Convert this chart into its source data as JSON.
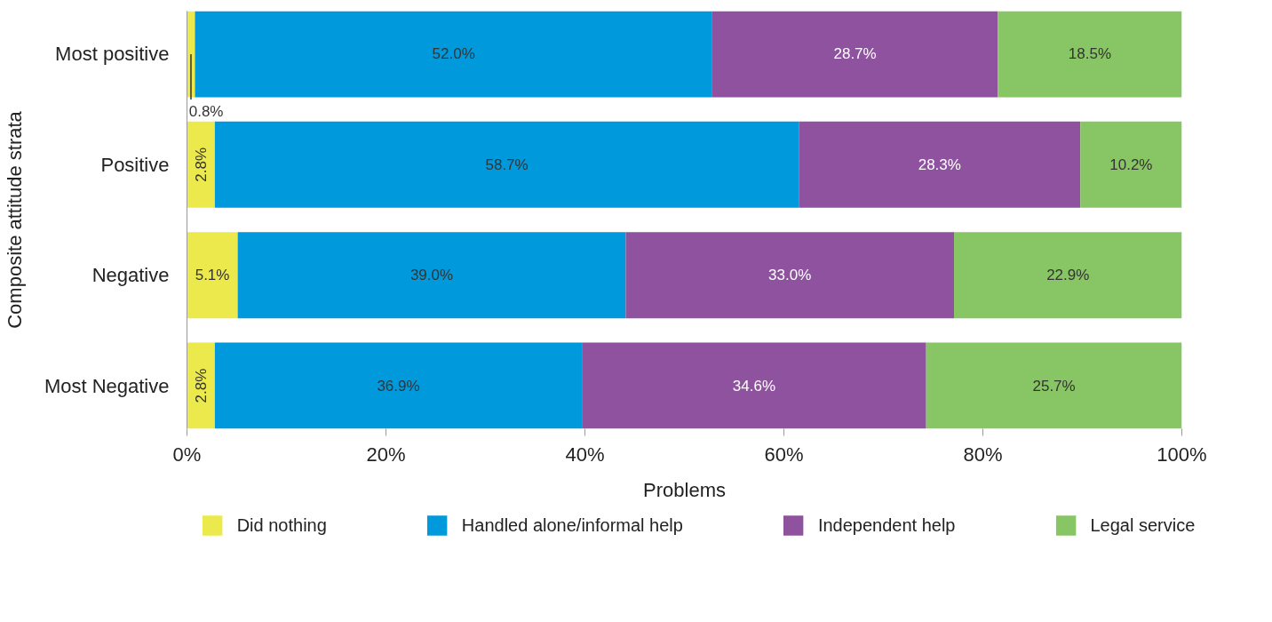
{
  "chart_data": {
    "type": "bar",
    "orientation": "horizontal",
    "stacked": true,
    "xlabel": "Problems",
    "ylabel": "Composite attitude strata",
    "categories": [
      "Most positive",
      "Positive",
      "Negative",
      "Most Negative"
    ],
    "series": [
      {
        "name": "Did nothing",
        "color": "#ece94c",
        "values": [
          0.8,
          2.8,
          5.1,
          2.8
        ]
      },
      {
        "name": "Handled alone/informal help",
        "color": "#0099dc",
        "values": [
          52.0,
          58.7,
          39.0,
          36.9
        ]
      },
      {
        "name": "Independent help",
        "color": "#8e529f",
        "values": [
          28.7,
          28.3,
          33.0,
          34.6
        ]
      },
      {
        "name": "Legal service",
        "color": "#88c665",
        "values": [
          18.5,
          10.2,
          22.9,
          25.7
        ]
      }
    ],
    "xlim": [
      0,
      100
    ],
    "xticks": [
      {
        "value": 0,
        "label": "0%"
      },
      {
        "value": 20,
        "label": "20%"
      },
      {
        "value": 40,
        "label": "40%"
      },
      {
        "value": 60,
        "label": "60%"
      },
      {
        "value": 80,
        "label": "80%"
      },
      {
        "value": 100,
        "label": "100%"
      }
    ],
    "value_labels": [
      [
        "0.8%",
        "2.8%",
        "5.1%",
        "2.8%"
      ],
      [
        "52.0%",
        "58.7%",
        "39.0%",
        "36.9%"
      ],
      [
        "28.7%",
        "28.3%",
        "33.0%",
        "34.6%"
      ],
      [
        "18.5%",
        "10.2%",
        "22.9%",
        "25.7%"
      ]
    ],
    "grid": false,
    "legend": "bottom"
  }
}
